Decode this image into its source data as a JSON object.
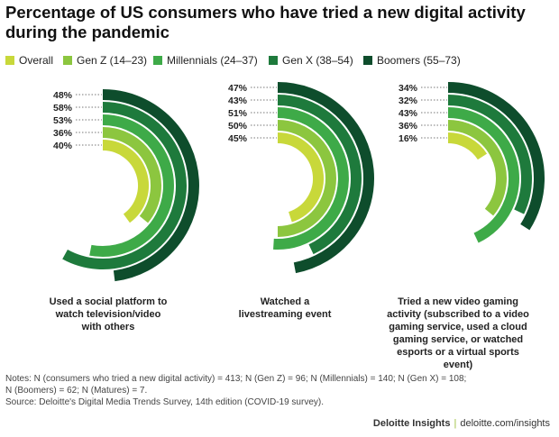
{
  "header": {
    "title": "Percentage of US consumers who have tried a new digital activity during the pandemic"
  },
  "chart_data": {
    "type": "radial-bar",
    "series": [
      {
        "name": "Overall",
        "color": "#c8d83a"
      },
      {
        "name": "Gen Z (14–23)",
        "color": "#8cc63f"
      },
      {
        "name": "Millennials (24–37)",
        "color": "#3eaa48"
      },
      {
        "name": "Gen X (38–54)",
        "color": "#1e7a3c"
      },
      {
        "name": "Boomers (55–73)",
        "color": "#0e4d2c"
      }
    ],
    "legend_position": "top",
    "groups": [
      {
        "caption": [
          "Used a social platform to",
          "watch television/video",
          "with others"
        ],
        "values": [
          40,
          36,
          53,
          58,
          48
        ],
        "labels": [
          "40%",
          "36%",
          "53%",
          "58%",
          "48%"
        ]
      },
      {
        "caption": [
          "Watched a",
          "livestreaming event"
        ],
        "values": [
          45,
          50,
          51,
          43,
          47
        ],
        "labels": [
          "45%",
          "50%",
          "51%",
          "43%",
          "47%"
        ]
      },
      {
        "caption": [
          "Tried a new video gaming",
          "activity (subscribed to a video",
          "gaming service, used a cloud",
          "gaming service, or watched",
          "esports or a virtual sports event)"
        ],
        "values": [
          16,
          36,
          43,
          32,
          34
        ],
        "labels": [
          "16%",
          "36%",
          "43%",
          "32%",
          "34%"
        ]
      }
    ]
  },
  "notes": {
    "lines": [
      "Notes: N (consumers who tried a new digital activity) = 413; N (Gen Z) = 96; N (Millennials) = 140; N (Gen X) = 108;",
      "N (Boomers) = 62; N (Matures) = 7.",
      "Source: Deloitte's Digital Media Trends Survey, 14th edition (COVID-19 survey)."
    ]
  },
  "footer": {
    "brand": "Deloitte Insights",
    "separator": "|",
    "url": "deloitte.com/insights"
  }
}
